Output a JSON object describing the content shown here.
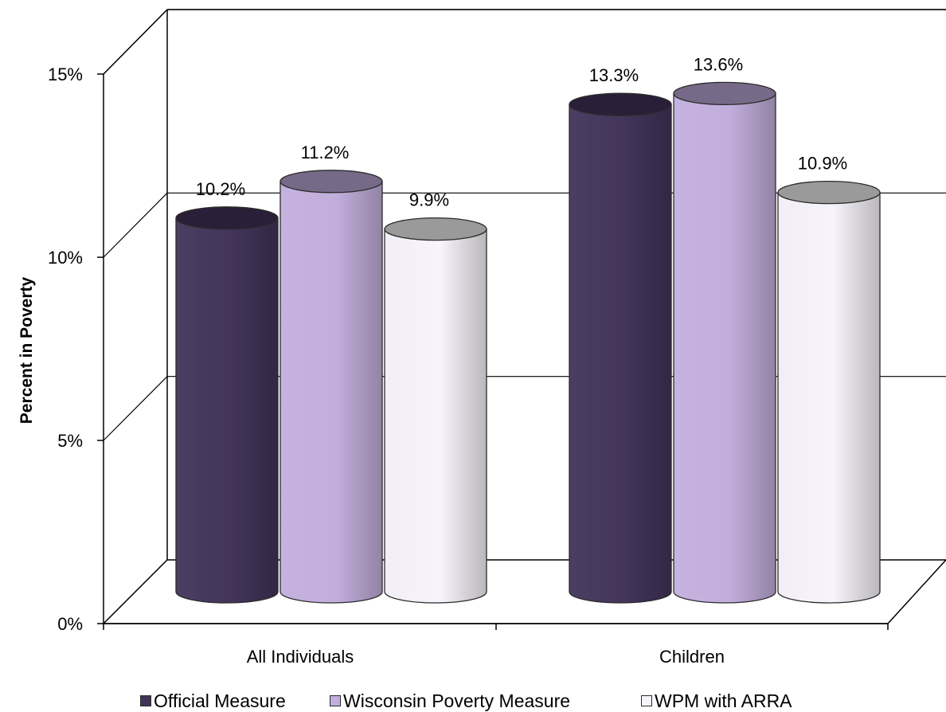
{
  "chart_data": {
    "type": "bar",
    "style": "3d-cylinder",
    "ylabel": "Percent in Poverty",
    "ylim": [
      0,
      15
    ],
    "yticks": [
      0,
      5,
      10,
      15
    ],
    "ytick_labels": [
      "0%",
      "5%",
      "10%",
      "15%"
    ],
    "categories": [
      "All Individuals",
      "Children"
    ],
    "series": [
      {
        "name": "Official Measure",
        "values": [
          10.2,
          13.3
        ],
        "labels": [
          "10.2%",
          "13.3%"
        ],
        "color": "#43345a"
      },
      {
        "name": "Wisconsin Poverty Measure",
        "values": [
          11.2,
          13.6
        ],
        "labels": [
          "11.2%",
          "13.6%"
        ],
        "color": "#c2aedc"
      },
      {
        "name": "WPM with ARRA",
        "values": [
          9.9,
          10.9
        ],
        "labels": [
          "9.9%",
          "10.9%"
        ],
        "color": "#f6f4fa"
      }
    ],
    "grid": true,
    "legend_position": "bottom"
  }
}
